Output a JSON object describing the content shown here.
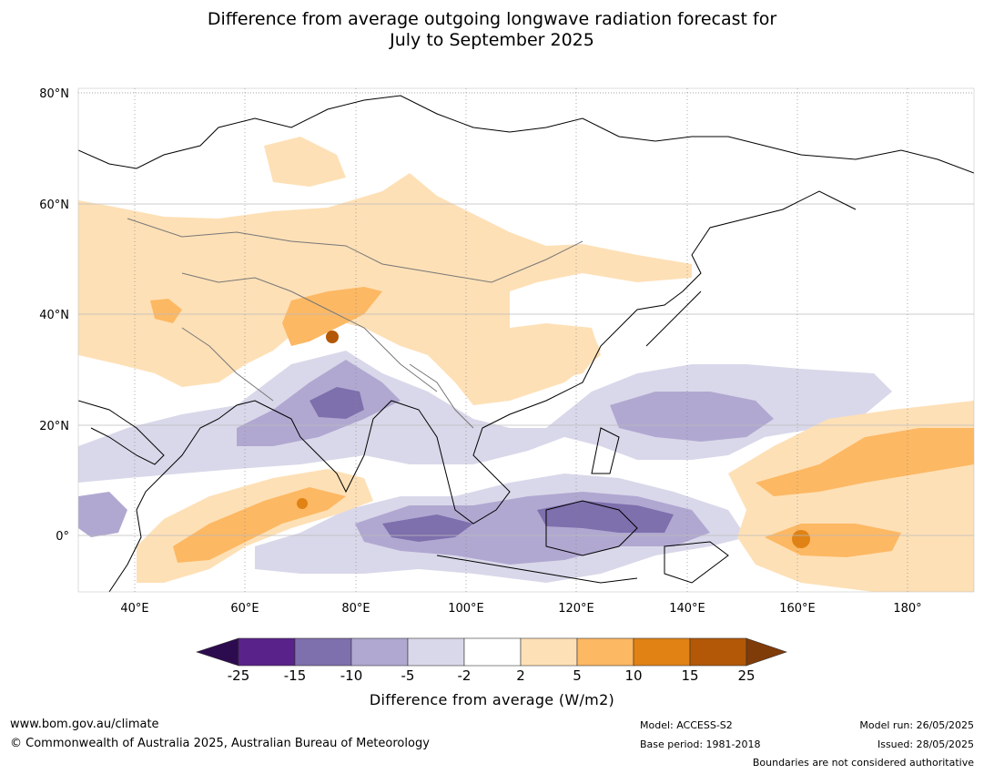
{
  "title": {
    "line1": "Difference from average outgoing longwave radiation forecast for",
    "line2": "July to September 2025"
  },
  "map": {
    "lat_labels": [
      "80°N",
      "60°N",
      "40°N",
      "20°N",
      "0°"
    ],
    "lon_labels": [
      "40°E",
      "60°E",
      "80°E",
      "100°E",
      "120°E",
      "140°E",
      "160°E",
      "180°"
    ]
  },
  "colorbar": {
    "ticks": [
      "-25",
      "-15",
      "-10",
      "-5",
      "-2",
      "2",
      "5",
      "10",
      "15",
      "25"
    ],
    "colors": [
      "#2d0b4f",
      "#59228a",
      "#7e6fad",
      "#b1a8d1",
      "#d9d8ea",
      "#ffffff",
      "#fee0b6",
      "#fdb863",
      "#e08214",
      "#b35806",
      "#7f3b08"
    ],
    "label": "Difference from average (W/m2)"
  },
  "footer": {
    "website": "www.bom.gov.au/climate",
    "copyright": "© Commonwealth of Australia 2025, Australian Bureau of Meteorology",
    "model": "Model: ACCESS-S2",
    "base_period": "Base period: 1981-2018",
    "model_run": "Model run: 26/05/2025",
    "issued": "Issued: 28/05/2025",
    "disclaimer": "Boundaries are not considered authoritative"
  }
}
